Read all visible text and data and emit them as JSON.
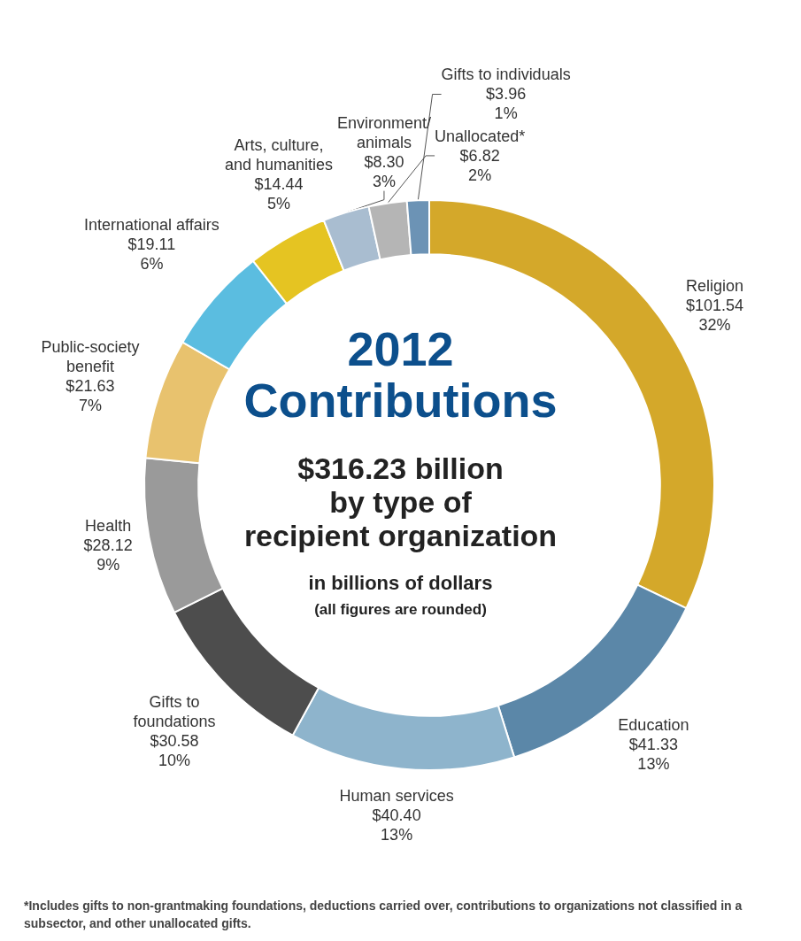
{
  "chart_data": {
    "type": "donut",
    "title": "2012\nContributions",
    "subtitle": "$316.23 billion\nby type of\nrecipient organization",
    "annotations": [
      "in billions of dollars",
      "(all figures are rounded)",
      "*Includes gifts to non-grantmaking foundations, deductions carried over, contributions to organizations not classified in a subsector, and other unallocated gifts."
    ],
    "categories": [
      "Religion",
      "Education",
      "Human services",
      "Gifts to\nfoundations",
      "Health",
      "Public-society\nbenefit",
      "International affairs",
      "Arts, culture,\nand humanities",
      "Environment/\nanimals",
      "Unallocated*",
      "Gifts to individuals"
    ],
    "values": [
      101.54,
      41.33,
      40.4,
      30.58,
      28.12,
      21.63,
      19.11,
      14.44,
      8.3,
      6.82,
      3.96
    ],
    "value_labels": [
      "$101.54\n32%",
      "$41.33\n13%",
      "$40.40\n13%",
      "$30.58\n10%",
      "$28.12\n9%",
      "$21.63\n7%",
      "$19.11\n6%",
      "$14.44\n5%",
      "$8.30\n3%",
      "$6.82\n2%",
      "$3.96\n1%"
    ],
    "colors": [
      "#d4a82a",
      "#5b87a8",
      "#8eb4cc",
      "#4d4d4d",
      "#9a9a9a",
      "#e8c26e",
      "#5bbde0",
      "#e5c422",
      "#a9bdd0",
      "#b5b5b5",
      "#6c93b5"
    ],
    "legend": false
  }
}
